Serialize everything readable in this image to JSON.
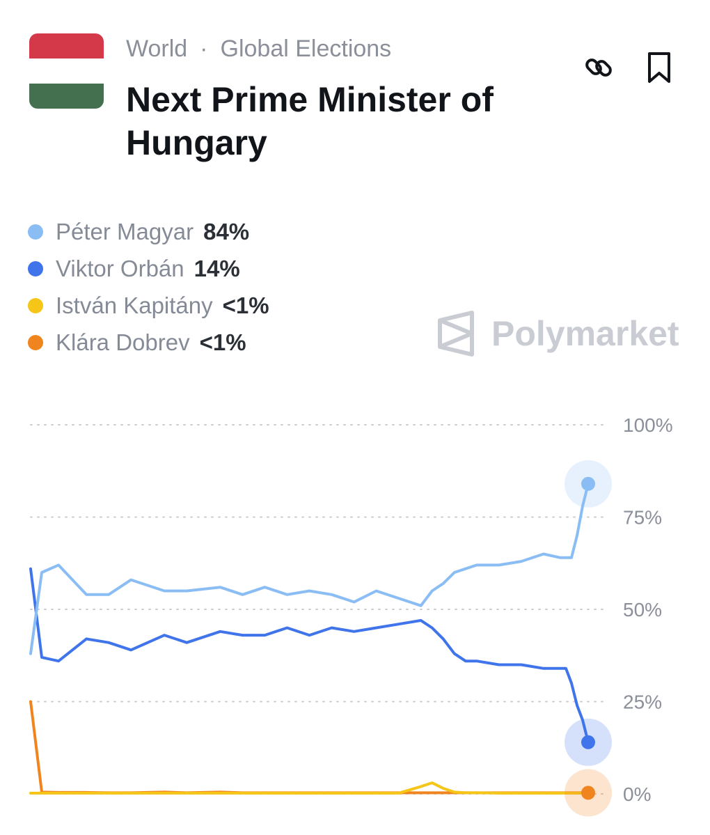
{
  "header": {
    "category": "World",
    "separator": "·",
    "subcategory": "Global Elections",
    "title": "Next Prime Minister of Hungary",
    "link_icon": "link-icon",
    "bookmark_icon": "bookmark-icon"
  },
  "flag": {
    "colors": [
      "#d4394a",
      "#ffffff",
      "#44704f"
    ]
  },
  "legend": [
    {
      "name": "Péter Magyar",
      "value": "84%",
      "color": "#8bbdf5"
    },
    {
      "name": "Viktor Orbán",
      "value": "14%",
      "color": "#3f74ea"
    },
    {
      "name": "István Kapitány",
      "value": "<1%",
      "color": "#f5c518"
    },
    {
      "name": "Klára Dobrev",
      "value": "<1%",
      "color": "#f0841e"
    }
  ],
  "watermark": {
    "text": "Polymarket"
  },
  "chart_data": {
    "type": "line",
    "x_labels": [],
    "y_ticks": [
      "100%",
      "75%",
      "50%",
      "25%",
      "0%"
    ],
    "ylim": [
      0,
      100
    ],
    "grid": true,
    "grid_style": "dotted",
    "x": [
      0,
      2,
      5,
      10,
      14,
      18,
      24,
      28,
      34,
      38,
      42,
      46,
      50,
      54,
      58,
      62,
      66,
      70,
      72,
      74,
      76,
      78,
      80,
      84,
      88,
      92,
      95,
      96,
      97,
      98,
      99,
      100
    ],
    "series": [
      {
        "name": "Péter Magyar",
        "color": "#8bbdf5",
        "values": [
          38,
          60,
          62,
          54,
          54,
          58,
          55,
          55,
          56,
          54,
          56,
          54,
          55,
          54,
          52,
          55,
          53,
          51,
          55,
          57,
          60,
          61,
          62,
          62,
          63,
          65,
          64,
          64,
          64,
          70,
          78,
          84
        ]
      },
      {
        "name": "Viktor Orbán",
        "color": "#3f74ea",
        "values": [
          61,
          37,
          36,
          42,
          41,
          39,
          43,
          41,
          44,
          43,
          43,
          45,
          43,
          45,
          44,
          45,
          46,
          47,
          45,
          42,
          38,
          36,
          36,
          35,
          35,
          34,
          34,
          34,
          30,
          24,
          20,
          14
        ]
      },
      {
        "name": "István Kapitány",
        "color": "#f5c518",
        "values": [
          0.2,
          0.2,
          0.2,
          0.2,
          0.2,
          0.2,
          0.2,
          0.2,
          0.2,
          0.2,
          0.2,
          0.2,
          0.2,
          0.2,
          0.2,
          0.2,
          0.2,
          2,
          3,
          1.5,
          0.5,
          0.3,
          0.3,
          0.2,
          0.2,
          0.2,
          0.2,
          0.2,
          0.2,
          0.2,
          0.2,
          0.2
        ]
      },
      {
        "name": "Klára Dobrev",
        "color": "#f0841e",
        "values": [
          25,
          0.5,
          0.4,
          0.4,
          0.3,
          0.3,
          0.5,
          0.3,
          0.5,
          0.3,
          0.3,
          0.3,
          0.3,
          0.3,
          0.3,
          0.3,
          0.3,
          0.3,
          0.3,
          0.3,
          0.3,
          0.3,
          0.3,
          0.3,
          0.3,
          0.3,
          0.3,
          0.3,
          0.3,
          0.3,
          0.3,
          0.3
        ]
      }
    ],
    "end_markers": [
      "Péter Magyar",
      "Viktor Orbán",
      "Klára Dobrev"
    ]
  }
}
